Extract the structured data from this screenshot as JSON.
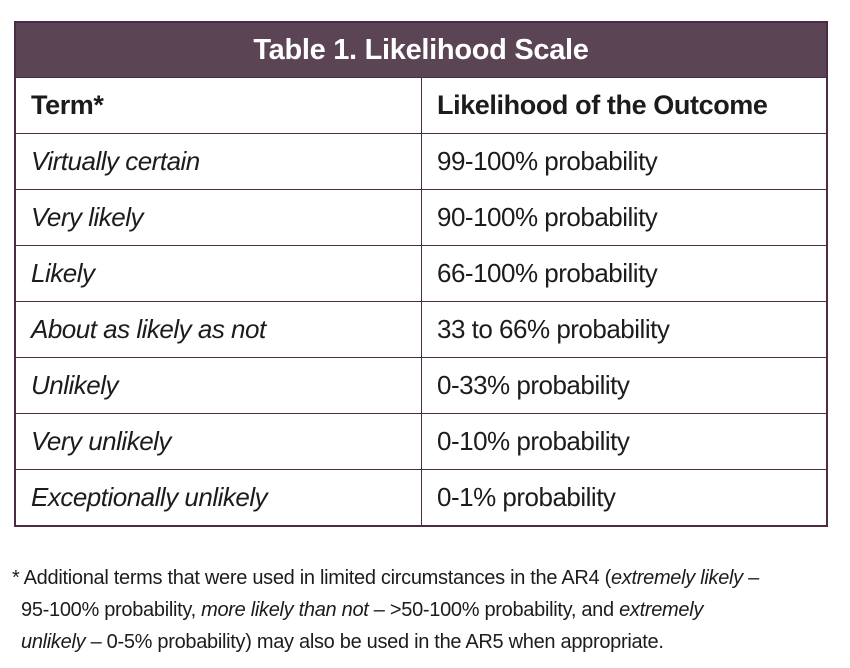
{
  "table": {
    "title": "Table 1. Likelihood Scale",
    "columns": [
      "Term*",
      "Likelihood of the Outcome"
    ],
    "rows": [
      {
        "term": "Virtually certain",
        "likelihood": "99-100% probability"
      },
      {
        "term": "Very likely",
        "likelihood": "90-100% probability"
      },
      {
        "term": "Likely",
        "likelihood": "66-100% probability"
      },
      {
        "term": "About as likely as not",
        "likelihood": "33 to 66% probability"
      },
      {
        "term": "Unlikely",
        "likelihood": "0-33% probability"
      },
      {
        "term": "Very unlikely",
        "likelihood": "0-10% probability"
      },
      {
        "term": "Exceptionally unlikely",
        "likelihood": "0-1% probability"
      }
    ]
  },
  "footnote": {
    "full_text": "* Additional terms that were used in limited circumstances in the AR4 (extremely likely – 95-100% probability, more likely than not – >50-100% probability, and extremely unlikely – 0-5% probability) may also be used in the AR5 when appropriate.",
    "lines": [
      {
        "plain1": "* Additional terms that were used in limited circumstances in the AR4 (",
        "italic1": "extremely likely",
        "plain2": " –"
      },
      {
        "plain1": "95-100% probability, ",
        "italic1": "more likely than not",
        "plain2": " – >50-100% probability, and ",
        "italic2": "extremely"
      },
      {
        "italic1": "unlikely",
        "plain1": " – 0-5% probability) may also be used in the AR5 when appropriate."
      }
    ]
  },
  "colors": {
    "header_background": "#5b4454",
    "table_border": "#4c2c44",
    "text": "#1c1c1c",
    "page_background": "#ffffff"
  }
}
